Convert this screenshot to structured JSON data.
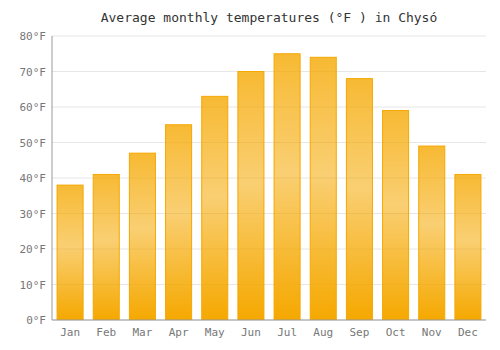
{
  "chart_data": {
    "type": "bar",
    "title": "Average monthly temperatures (°F ) in Chysó",
    "categories": [
      "Jan",
      "Feb",
      "Mar",
      "Apr",
      "May",
      "Jun",
      "Jul",
      "Aug",
      "Sep",
      "Oct",
      "Nov",
      "Dec"
    ],
    "values": [
      38,
      41,
      47,
      55,
      63,
      70,
      75,
      74,
      68,
      59,
      49,
      41
    ],
    "color": "#F5A800",
    "ylim": [
      0,
      80
    ],
    "yticks": [
      {
        "value": 0,
        "label": "0°F"
      },
      {
        "value": 10,
        "label": "10°F"
      },
      {
        "value": 20,
        "label": "20°F"
      },
      {
        "value": 30,
        "label": "30°F"
      },
      {
        "value": 40,
        "label": "40°F"
      },
      {
        "value": 50,
        "label": "50°F"
      },
      {
        "value": 60,
        "label": "60°F"
      },
      {
        "value": 70,
        "label": "70°F"
      },
      {
        "value": 80,
        "label": "80°F"
      }
    ],
    "grid": true
  }
}
